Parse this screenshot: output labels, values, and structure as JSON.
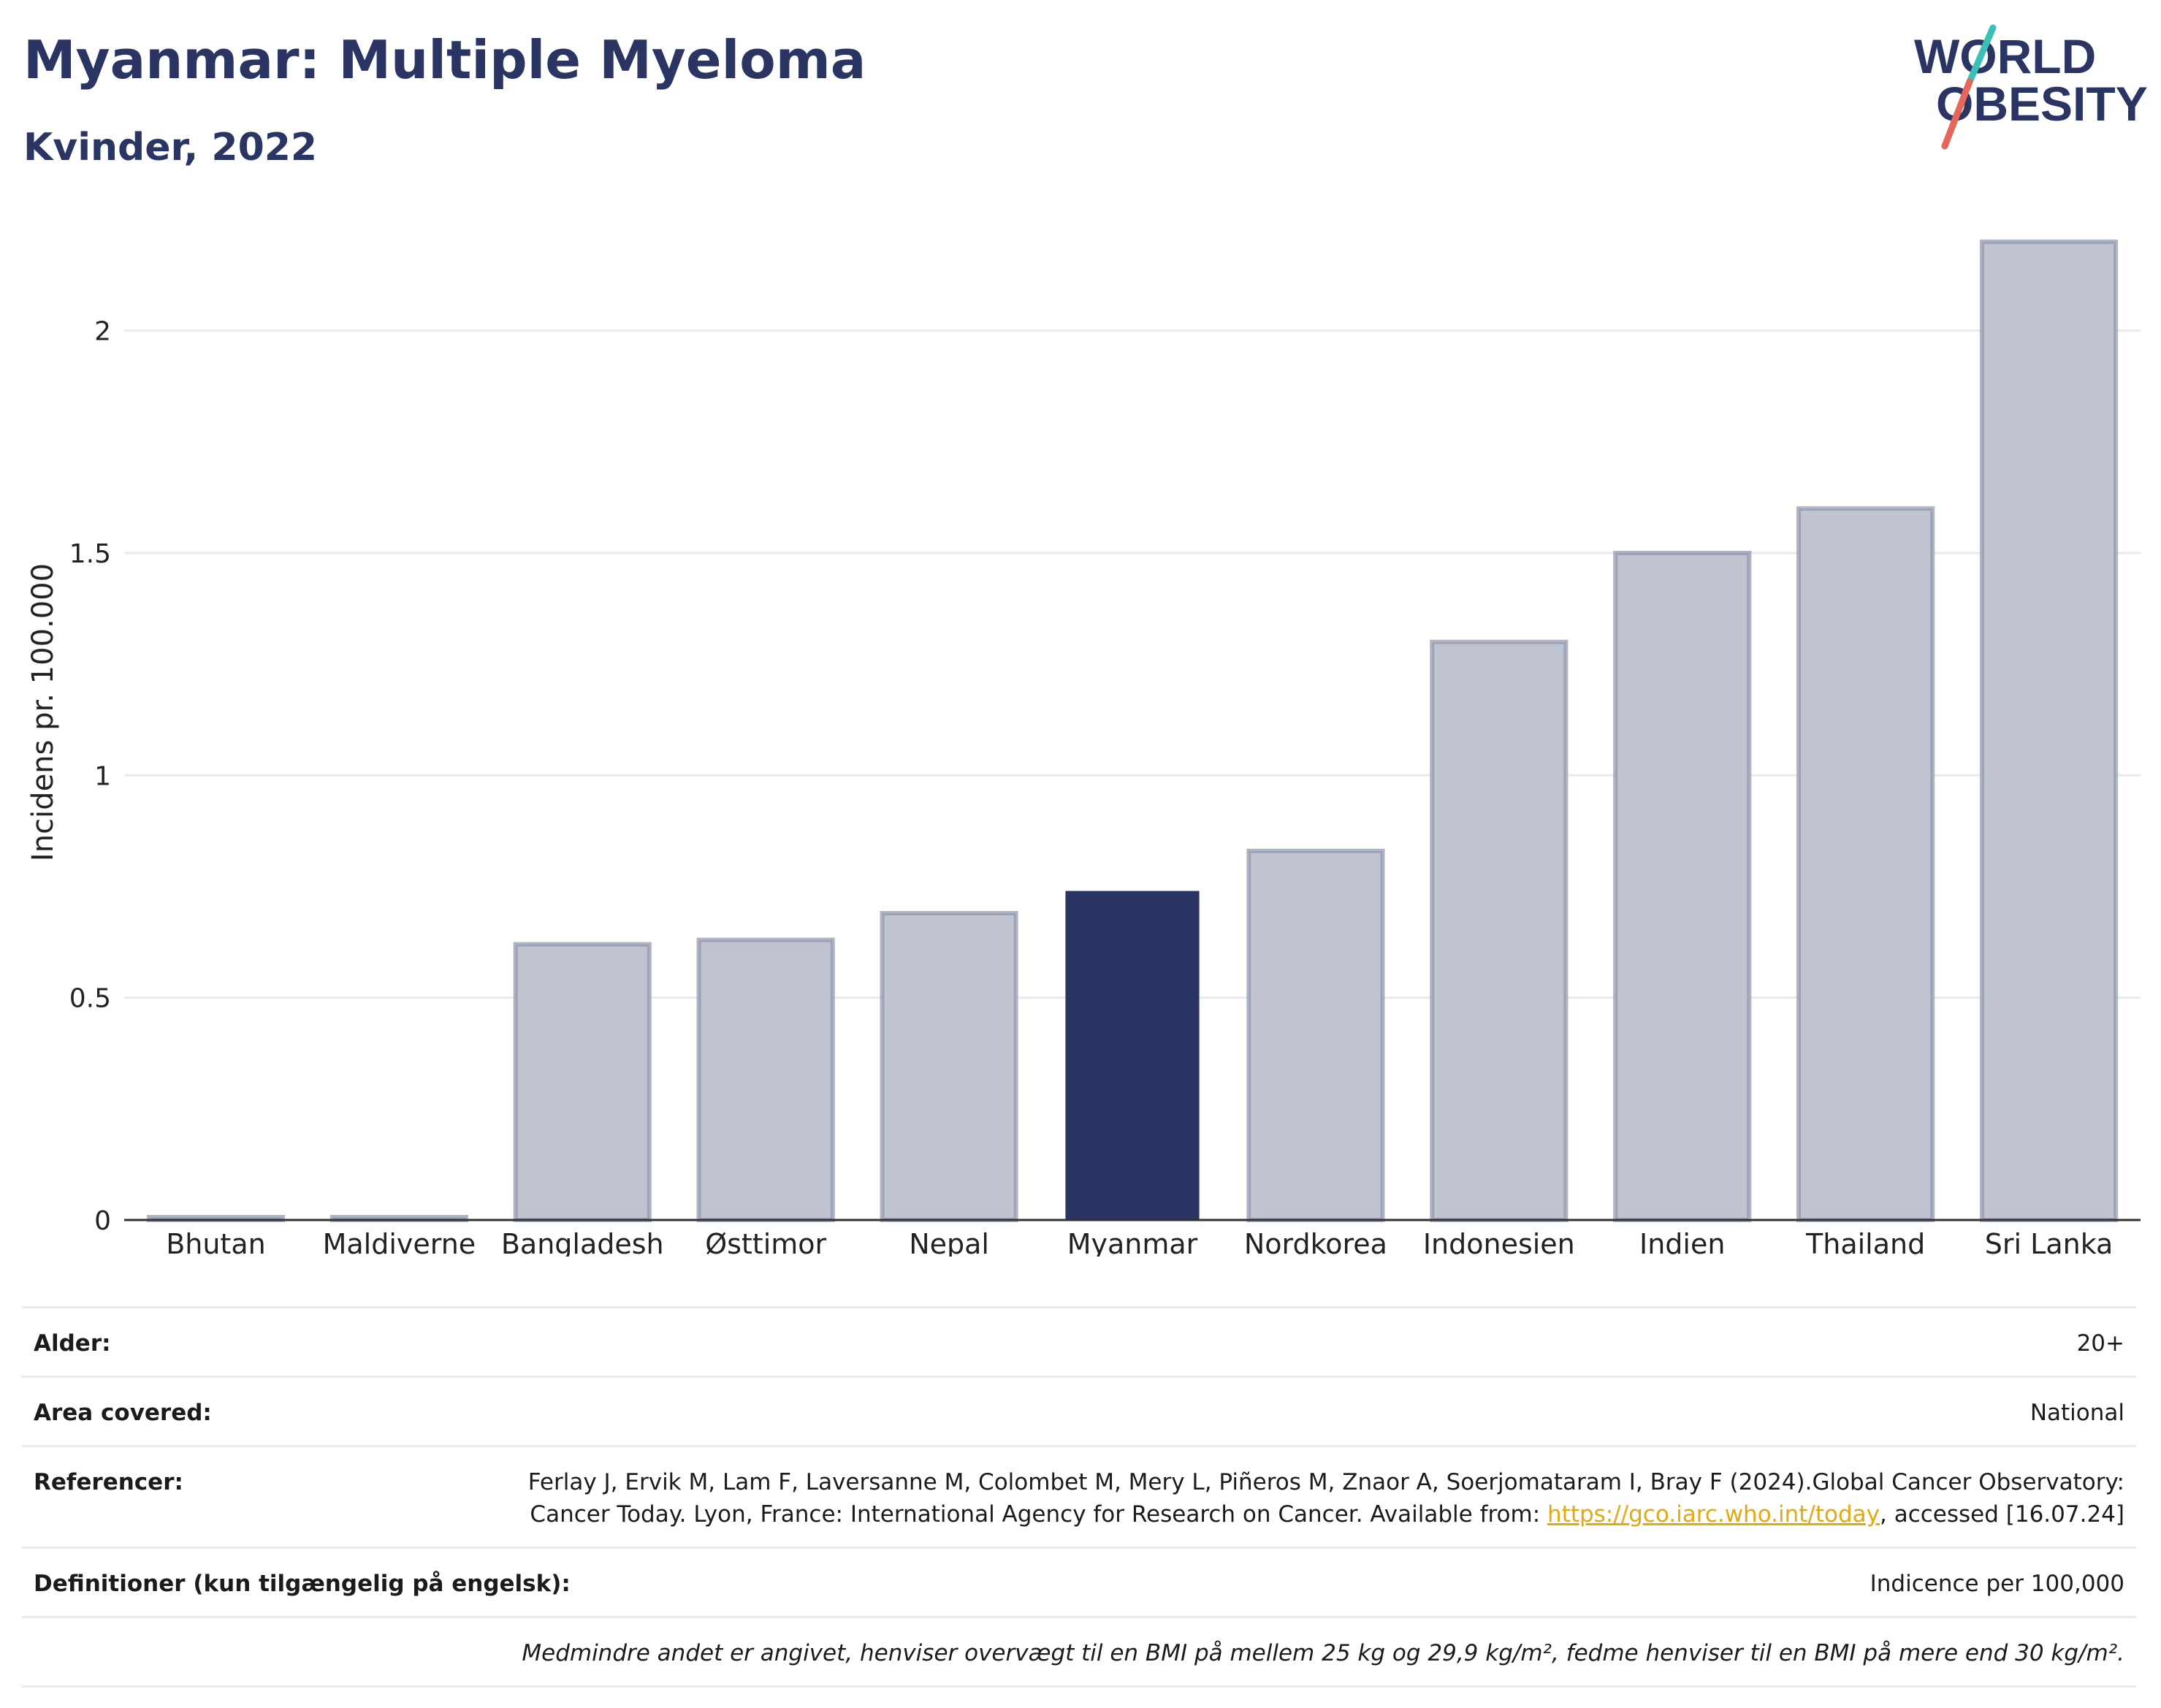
{
  "title": "Myanmar: Multiple Myeloma",
  "subtitle": "Kvinder, 2022",
  "logo": {
    "line1": "WORLD",
    "line2": "OBESITY",
    "colors": {
      "text": "#2a3563",
      "slash_top": "#3bbfb6",
      "slash_bottom": "#e5675a"
    }
  },
  "chart_data": {
    "type": "bar",
    "categories": [
      "Bhutan",
      "Maldiverne",
      "Bangladesh",
      "Østtimor",
      "Nepal",
      "Myanmar",
      "Nordkorea",
      "Indonesien",
      "Indien",
      "Thailand",
      "Sri Lanka"
    ],
    "values": [
      0.0,
      0.0,
      0.62,
      0.63,
      0.69,
      0.74,
      0.83,
      1.3,
      1.5,
      1.6,
      2.2
    ],
    "highlight": "Myanmar",
    "ylabel": "Incidens pr. 100.000",
    "xlabel": "",
    "ylim": [
      0,
      2.3
    ],
    "yticks": [
      0,
      0.5,
      1,
      1.5,
      2
    ],
    "ytick_labels": [
      "0",
      "0.5",
      "1",
      "1.5",
      "2"
    ],
    "grid": true,
    "colors": {
      "bar": "#c0c4d1",
      "bar_border": "#8f96ad",
      "highlight": "#2a3563",
      "grid": "#e8eaf0",
      "axis": "#333333"
    }
  },
  "info": {
    "age_label": "Alder:",
    "age_value": "20+",
    "area_label": "Area covered:",
    "area_value": "National",
    "refs_label": "Referencer:",
    "refs_text_1": "Ferlay J, Ervik M, Lam F, Laversanne M, Colombet M, Mery L, Piñeros M, Znaor A, Soerjomataram I, Bray F (2024).Global Cancer Observatory: Cancer Today. Lyon, France: International Agency for Research on Cancer. Available from: ",
    "refs_link": "https://gco.iarc.who.int/today",
    "refs_text_2": ", accessed [16.07.24]",
    "defs_label": "Definitioner (kun tilgængelig på engelsk):",
    "defs_value": "Indicence per 100,000",
    "note": "Medmindre andet er angivet, henviser overvægt til en BMI på mellem 25 kg og 29,9 kg/m², fedme henviser til en BMI på mere end 30 kg/m²."
  }
}
